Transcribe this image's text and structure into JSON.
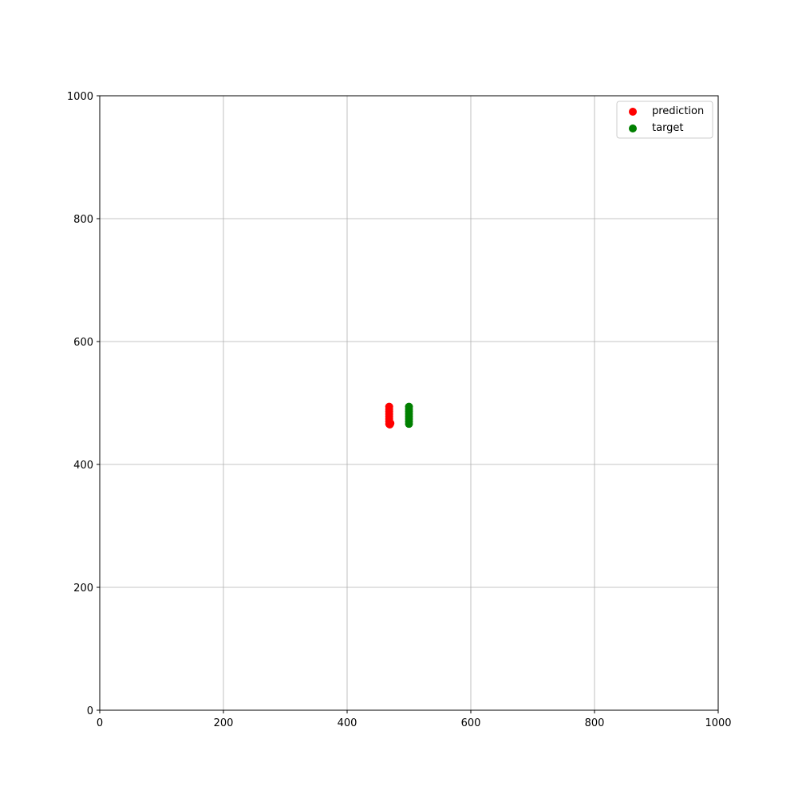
{
  "chart_data": {
    "type": "scatter",
    "xlim": [
      0,
      1000
    ],
    "ylim": [
      0,
      1000
    ],
    "xticks": [
      "0",
      "200",
      "400",
      "600",
      "800",
      "1000"
    ],
    "yticks": [
      "0",
      "200",
      "400",
      "600",
      "800",
      "1000"
    ],
    "grid": true,
    "legend_position": "top-right",
    "series": [
      {
        "name": "prediction",
        "color": "#ff0000",
        "points": [
          [
            468,
            466
          ],
          [
            468,
            470
          ],
          [
            468,
            474
          ],
          [
            468,
            478
          ],
          [
            468,
            482
          ],
          [
            468,
            486
          ],
          [
            468,
            490
          ],
          [
            468,
            494
          ],
          [
            469,
            465
          ],
          [
            470,
            467
          ]
        ]
      },
      {
        "name": "target",
        "color": "#008000",
        "points": [
          [
            500,
            466
          ],
          [
            500,
            470
          ],
          [
            500,
            474
          ],
          [
            500,
            478
          ],
          [
            500,
            482
          ],
          [
            500,
            486
          ],
          [
            500,
            490
          ],
          [
            500,
            494
          ]
        ]
      }
    ]
  }
}
